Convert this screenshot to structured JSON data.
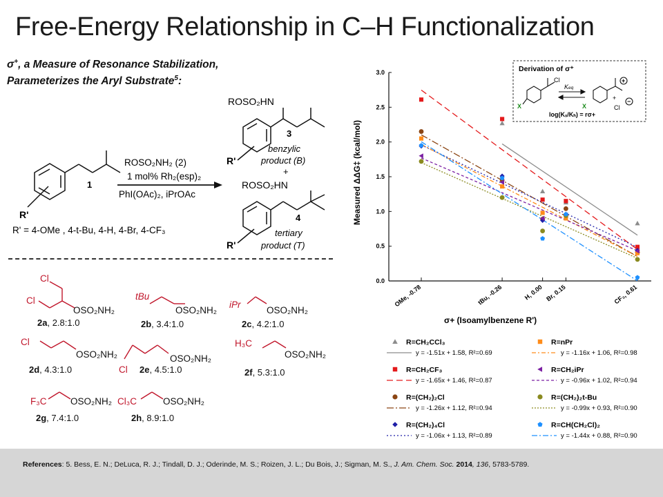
{
  "header": {
    "title": "Free-Energy Relationship in C–H Functionalization",
    "subtitle_line1": ", a Measure of Resonance Stabilization,",
    "subtitle_sigma": "σ",
    "subtitle_plus": "+",
    "subtitle_line2": "Parameterizes the Aryl Substrate",
    "subtitle_ref": "5",
    "subtitle_colon": ":"
  },
  "scheme": {
    "compound1": "1",
    "reagent_line1": "ROSO₂NH₂ (2)",
    "reagent_line2": "1 mol% Rh₂(esp)₂",
    "reagent_line3": "PhI(OAc)₂, iPrOAc",
    "product3_label": "ROSO₂HN",
    "product3_num": "3",
    "benzylic_line1": "benzylic",
    "benzylic_line2": "product (B)",
    "plus": "+",
    "product4_label": "ROSO₂HN",
    "product4_num": "4",
    "tertiary_line1": "tertiary",
    "tertiary_line2": "product (T)",
    "r_prime": "R'",
    "substituents": "R' = 4-OMe , 4-t-Bu, 4-H, 4-Br, 4-CF₃"
  },
  "reagents": [
    {
      "group": "Cl",
      "group2": "Cl",
      "sulfamate": "OSO₂NH₂",
      "id": "2a",
      "ratio": ", 2.8:1.0"
    },
    {
      "group": "tBu",
      "sulfamate": "OSO₂NH₂",
      "id": "2b",
      "ratio": ", 3.4:1.0"
    },
    {
      "group": "iPr",
      "sulfamate": "OSO₂NH₂",
      "id": "2c",
      "ratio": ", 4.2:1.0"
    },
    {
      "group": "Cl",
      "sulfamate": "OSO₂NH₂",
      "id": "2d",
      "ratio": ", 4.3:1.0"
    },
    {
      "group": "Cl",
      "sulfamate": "OSO₂NH₂",
      "id": "2e",
      "ratio": ", 4.5:1.0"
    },
    {
      "group": "H₃C",
      "sulfamate": "OSO₂NH₂",
      "id": "2f",
      "ratio": ", 5.3:1.0"
    },
    {
      "group": "F₃C",
      "sulfamate": "OSO₂NH₂",
      "id": "2g",
      "ratio": ", 7.4:1.0"
    },
    {
      "group": "Cl₃C",
      "sulfamate": "OSO₂NH₂",
      "id": "2h",
      "ratio": ", 8.9:1.0"
    }
  ],
  "inset": {
    "title": "Derivation of σ⁺",
    "cl": "Cl",
    "keq": "K",
    "keq_sub": "eq",
    "x_left": "X",
    "x_right": "X",
    "equation": "log(Kₓ/Kₕ) = rσ+",
    "plus_sym": "+",
    "minus_sym": "−",
    "cl_right": "Cl"
  },
  "chart_data": {
    "type": "scatter",
    "ylabel": "Measured ΔΔG‡ (kcal/mol)",
    "xlabel": "σ+ (Isoamylbenzene R')",
    "xlim": [
      -0.78,
      0.61
    ],
    "ylim": [
      0.0,
      3.0
    ],
    "y_ticks": [
      "0.0",
      "0.5",
      "1.0",
      "1.5",
      "2.0",
      "2.5",
      "3.0"
    ],
    "x_tick_values": [
      -0.78,
      -0.26,
      0.0,
      0.15,
      0.61
    ],
    "x_tick_labels": [
      "OMe, -0.78",
      "tBu, -0.26",
      "H, 0.00",
      "Br, 0.15",
      "CF₃, 0.61"
    ],
    "grid": false,
    "series": [
      {
        "name": "R=CH₂CCl₃",
        "fit": "y = -1.51x + 1.58, R²=0.69",
        "color": "#8c8c8c",
        "marker": "triangle",
        "dash": "",
        "slope": -1.51,
        "intercept": 1.58,
        "points": [
          [
            -0.26,
            2.27
          ],
          [
            0.0,
            1.29
          ],
          [
            0.15,
            1.13
          ],
          [
            0.61,
            0.83
          ]
        ]
      },
      {
        "name": "R=CH₂CF₃",
        "fit": "y = -1.65x + 1.46, R²=0.87",
        "color": "#e41a1c",
        "marker": "square",
        "dash": "9,5",
        "slope": -1.65,
        "intercept": 1.46,
        "points": [
          [
            -0.78,
            2.61
          ],
          [
            -0.26,
            2.33
          ],
          [
            0.0,
            1.17
          ],
          [
            0.15,
            1.15
          ],
          [
            0.61,
            0.49
          ]
        ]
      },
      {
        "name": "R=(CH₂)₂Cl",
        "fit": "y = -1.26x + 1.12, R²=0.94",
        "color": "#8b4513",
        "marker": "circle",
        "dash": "10,3,2,3",
        "slope": -1.26,
        "intercept": 1.12,
        "points": [
          [
            -0.78,
            2.15
          ],
          [
            -0.26,
            1.45
          ],
          [
            0.0,
            0.89
          ],
          [
            0.15,
            1.04
          ],
          [
            0.61,
            0.41
          ]
        ]
      },
      {
        "name": "R=(CH₂)₄Cl",
        "fit": "y = -1.06x + 1.13, R²=0.89",
        "color": "#1f1fa8",
        "marker": "diamond",
        "dash": "2,3",
        "slope": -1.06,
        "intercept": 1.13,
        "points": [
          [
            -0.78,
            1.94
          ],
          [
            -0.26,
            1.51
          ],
          [
            0.0,
            0.87
          ],
          [
            0.15,
            0.96
          ],
          [
            0.61,
            0.44
          ]
        ]
      },
      {
        "name": "R=nPr",
        "fit": "y = -1.16x + 1.06, R²=0.98",
        "color": "#ff8c1a",
        "marker": "square",
        "dash": "6,3,2,3",
        "slope": -1.16,
        "intercept": 1.06,
        "points": [
          [
            -0.78,
            2.05
          ],
          [
            -0.26,
            1.36
          ],
          [
            0.0,
            0.98
          ],
          [
            0.15,
            0.9
          ],
          [
            0.61,
            0.4
          ]
        ]
      },
      {
        "name": "R=CH₂iPr",
        "fit": "y = -0.96x + 1.02, R²=0.94",
        "color": "#7b1fa2",
        "marker": "triangle-left",
        "dash": "4,3",
        "slope": -0.96,
        "intercept": 1.02,
        "points": [
          [
            -0.78,
            1.8
          ],
          [
            -0.26,
            1.42
          ],
          [
            0.0,
            0.9
          ],
          [
            0.15,
            0.95
          ],
          [
            0.61,
            0.43
          ]
        ]
      },
      {
        "name": "R=(CH₂)₂t-Bu",
        "fit": "y = -0.99x + 0.93, R²=0.90",
        "color": "#8a8a1f",
        "marker": "circle",
        "dash": "2,2",
        "slope": -0.99,
        "intercept": 0.93,
        "points": [
          [
            -0.78,
            1.72
          ],
          [
            -0.26,
            1.2
          ],
          [
            0.0,
            0.72
          ],
          [
            0.15,
            0.94
          ],
          [
            0.61,
            0.31
          ]
        ]
      },
      {
        "name": "R=CH(CH₂Cl)₂",
        "fit": "y = -1.44x + 0.88, R²=0.90",
        "color": "#1e90ff",
        "marker": "pentagon",
        "dash": "8,3,2,3",
        "slope": -1.44,
        "intercept": 0.88,
        "points": [
          [
            -0.78,
            1.95
          ],
          [
            -0.26,
            1.48
          ],
          [
            0.0,
            0.61
          ],
          [
            0.15,
            0.96
          ],
          [
            0.61,
            0.05
          ]
        ]
      }
    ]
  },
  "references": {
    "prefix": "References",
    "text": ": 5. Bess, E. N.; DeLuca, R. J.; Tindall, D. J.; Oderinde, M. S.; Roizen, J. L.; Du Bois, J.; Sigman, M. S., ",
    "journal": "J. Am. Chem. Soc.",
    "year": " 2014",
    "volume": ", 136",
    "pages": ", 5783-5789."
  }
}
